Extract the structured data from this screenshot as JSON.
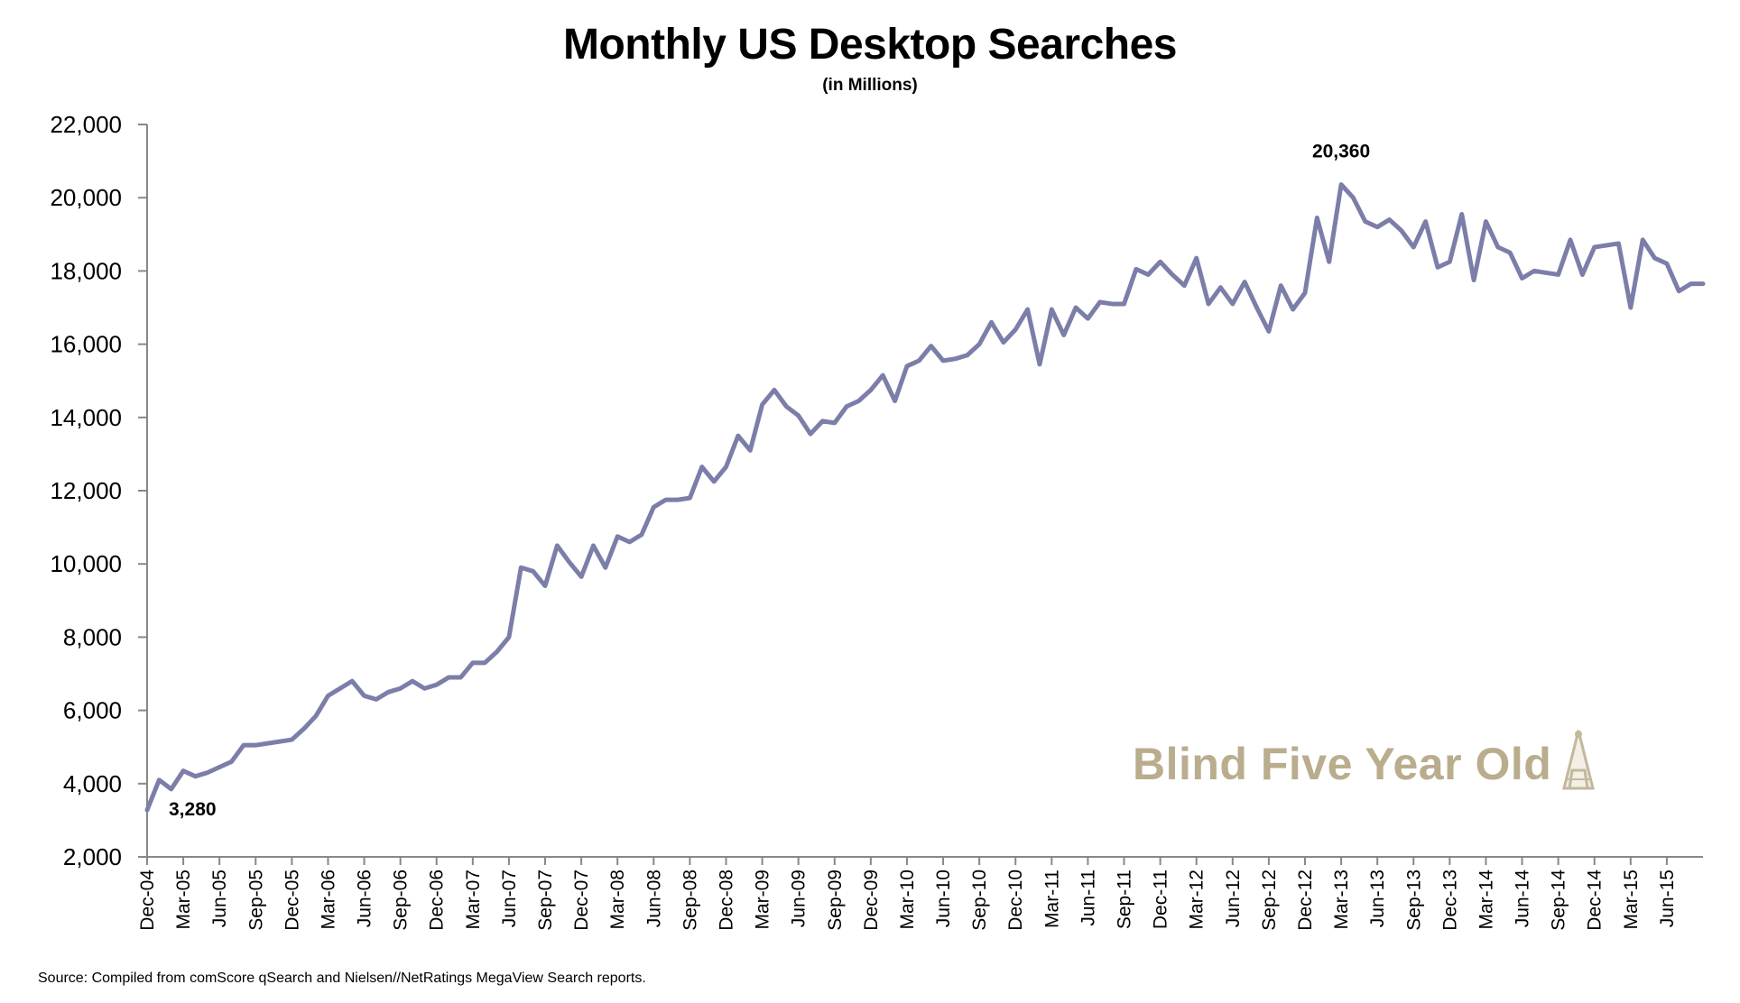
{
  "chart_data": {
    "type": "line",
    "title": "Monthly US Desktop Searches",
    "subtitle": "(in Millions)",
    "xlabel": "",
    "ylabel": "",
    "ylim": [
      2000,
      22000
    ],
    "yticks": [
      2000,
      4000,
      6000,
      8000,
      10000,
      12000,
      14000,
      16000,
      18000,
      20000,
      22000
    ],
    "ytick_labels": [
      "2,000",
      "4,000",
      "6,000",
      "8,000",
      "10,000",
      "12,000",
      "14,000",
      "16,000",
      "18,000",
      "20,000",
      "22,000"
    ],
    "x_tick_labels": [
      "Dec-04",
      "Mar-05",
      "Jun-05",
      "Sep-05",
      "Dec-05",
      "Mar-06",
      "Jun-06",
      "Sep-06",
      "Dec-06",
      "Mar-07",
      "Jun-07",
      "Sep-07",
      "Dec-07",
      "Mar-08",
      "Jun-08",
      "Sep-08",
      "Dec-08",
      "Mar-09",
      "Jun-09",
      "Sep-09",
      "Dec-09",
      "Mar-10",
      "Jun-10",
      "Sep-10",
      "Dec-10",
      "Mar-11",
      "Jun-11",
      "Sep-11",
      "Dec-11",
      "Mar-12",
      "Jun-12",
      "Sep-12",
      "Dec-12",
      "Mar-13",
      "Jun-13",
      "Sep-13",
      "Dec-13",
      "Mar-14",
      "Jun-14",
      "Sep-14",
      "Dec-14",
      "Mar-15",
      "Jun-15"
    ],
    "x_start": "Dec-04",
    "series": [
      {
        "color": "#7b7ea8",
        "values": [
          3280,
          4100,
          3850,
          4350,
          4200,
          4300,
          4450,
          4600,
          5050,
          5050,
          5100,
          5150,
          5200,
          5500,
          5850,
          6400,
          6600,
          6800,
          6400,
          6300,
          6500,
          6600,
          6800,
          6600,
          6700,
          6900,
          6900,
          7300,
          7300,
          7600,
          8000,
          9900,
          9800,
          9400,
          10500,
          10050,
          9650,
          10500,
          9900,
          10750,
          10600,
          10800,
          11550,
          11750,
          11750,
          11800,
          12650,
          12250,
          12650,
          13500,
          13100,
          14350,
          14750,
          14300,
          14050,
          13550,
          13900,
          13850,
          14300,
          14450,
          14750,
          15150,
          14450,
          15400,
          15550,
          15950,
          15550,
          15600,
          15700,
          16000,
          16600,
          16050,
          16400,
          16950,
          15450,
          16950,
          16250,
          17000,
          16700,
          17150,
          17100,
          17100,
          18050,
          17900,
          18250,
          17900,
          17600,
          18350,
          17100,
          17550,
          17100,
          17700,
          17000,
          16350,
          17600,
          16950,
          17400,
          19450,
          18250,
          20360,
          20000,
          19350,
          19200,
          19400,
          19100,
          18650,
          19350,
          18100,
          18250,
          19550,
          17750,
          19350,
          18650,
          18500,
          17800,
          18000,
          17950,
          17900,
          18850,
          17900,
          18650,
          18700,
          18750,
          17000,
          18850,
          18350,
          18200,
          17450,
          17650,
          17650
        ]
      }
    ],
    "annotations": [
      {
        "text": "3,280",
        "point": "Dec-04",
        "value": 3280
      },
      {
        "text": "20,360",
        "point": "Mar-13",
        "value": 20360
      }
    ],
    "grid": false,
    "legend": "none"
  },
  "watermark": {
    "text": "Blind Five Year Old",
    "icon": "dunce-cap-icon"
  },
  "source": "Source: Compiled from comScore qSearch and Nielsen//NetRatings MegaView Search reports."
}
